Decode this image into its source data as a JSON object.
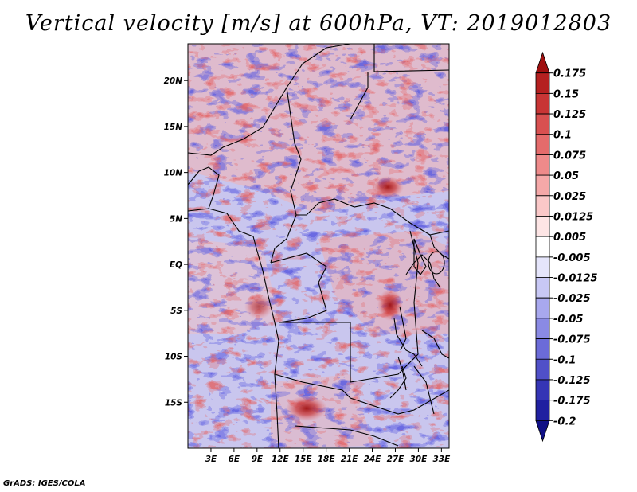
{
  "title": "Vertical velocity [m/s] at 600hPa, VT: 2019012803",
  "credit": "GrADS: IGES/COLA",
  "map": {
    "variable": "Vertical velocity",
    "units": "m/s",
    "level": "600hPa",
    "valid_time": "2019012803",
    "lon_range": [
      0,
      34
    ],
    "lat_range": [
      -20,
      24
    ],
    "lat_ticks": [
      {
        "value": 20,
        "label": "20N"
      },
      {
        "value": 15,
        "label": "15N"
      },
      {
        "value": 10,
        "label": "10N"
      },
      {
        "value": 5,
        "label": "5N"
      },
      {
        "value": 0,
        "label": "EQ"
      },
      {
        "value": -5,
        "label": "5S"
      },
      {
        "value": -10,
        "label": "10S"
      },
      {
        "value": -15,
        "label": "15S"
      }
    ],
    "lon_ticks": [
      {
        "value": 3,
        "label": "3E"
      },
      {
        "value": 6,
        "label": "6E"
      },
      {
        "value": 9,
        "label": "9E"
      },
      {
        "value": 12,
        "label": "12E"
      },
      {
        "value": 15,
        "label": "15E"
      },
      {
        "value": 18,
        "label": "18E"
      },
      {
        "value": 21,
        "label": "21E"
      },
      {
        "value": 24,
        "label": "24E"
      },
      {
        "value": 27,
        "label": "27E"
      },
      {
        "value": 30,
        "label": "30E"
      },
      {
        "value": 33,
        "label": "33E"
      }
    ],
    "features": [
      {
        "name": "strong-updraft-south-sudan",
        "lon": 26,
        "lat": 9.5,
        "value": 0.15
      },
      {
        "name": "strong-updraft-dr-congo-east",
        "lon": 26.5,
        "lat": -4.5,
        "value": 0.175
      },
      {
        "name": "strong-updraft-angola-south",
        "lon": 16.5,
        "lat": -16.5,
        "value": 0.175
      },
      {
        "name": "updraft-gabon-coast",
        "lon": 8.5,
        "lat": -4,
        "value": 0.1
      }
    ]
  },
  "colorbar": {
    "levels": [
      "0.175",
      "0.15",
      "0.125",
      "0.1",
      "0.075",
      "0.05",
      "0.025",
      "0.0125",
      "0.005",
      "-0.005",
      "-0.0125",
      "-0.025",
      "-0.05",
      "-0.075",
      "-0.1",
      "-0.125",
      "-0.175",
      "-0.2"
    ],
    "colors": [
      "#a01010",
      "#b52020",
      "#c83535",
      "#d85050",
      "#e46b6b",
      "#ee8a8a",
      "#f5a8a8",
      "#fac8c8",
      "#fde5e5",
      "#ffffff",
      "#e5e5fb",
      "#c8c8f5",
      "#a8a8ee",
      "#8a8ae4",
      "#6b6bd8",
      "#5050c8",
      "#3535b5",
      "#2020a0",
      "#101085"
    ]
  }
}
